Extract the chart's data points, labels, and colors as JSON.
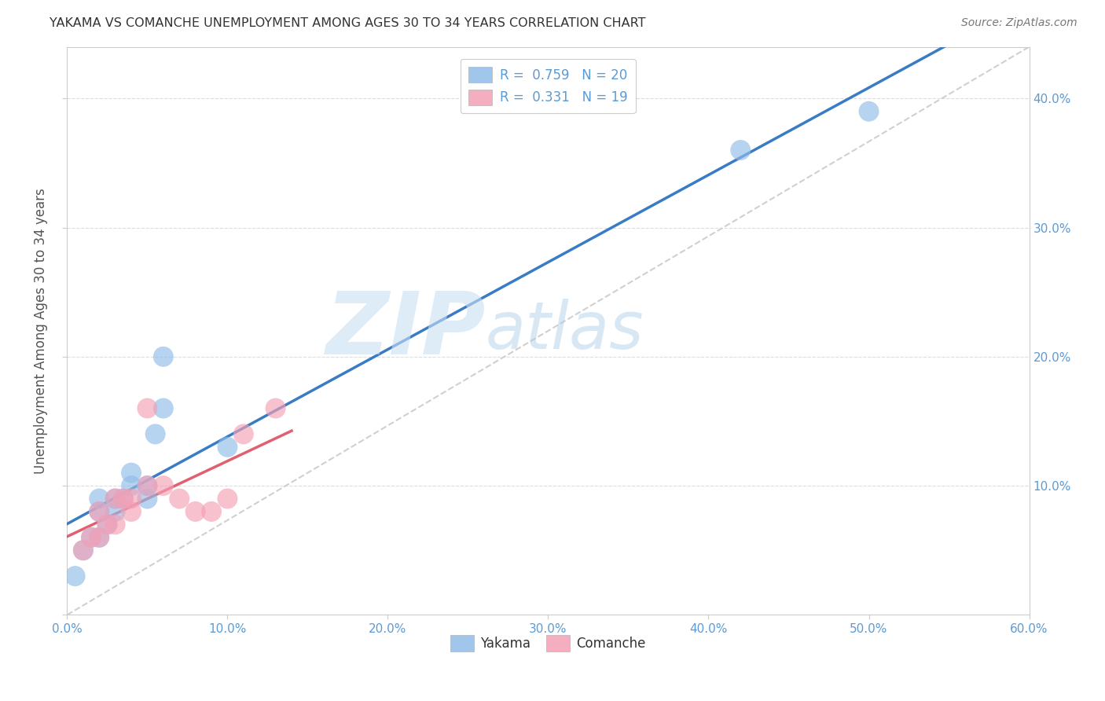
{
  "title": "YAKAMA VS COMANCHE UNEMPLOYMENT AMONG AGES 30 TO 34 YEARS CORRELATION CHART",
  "source_text": "Source: ZipAtlas.com",
  "ylabel": "Unemployment Among Ages 30 to 34 years",
  "watermark_zip": "ZIP",
  "watermark_atlas": "atlas",
  "xlim": [
    0.0,
    0.6
  ],
  "ylim": [
    0.0,
    0.44
  ],
  "yakama_color": "#90BCE8",
  "comanche_color": "#F4A0B5",
  "yakama_line_color": "#3A7CC4",
  "comanche_line_color": "#E06070",
  "ref_line_color": "#D0D0D0",
  "grid_color": "#DDDDDD",
  "tick_color": "#5B9BD5",
  "title_color": "#333333",
  "source_color": "#777777",
  "legend_label_color": "#5B9BD5",
  "bottom_legend_color": "#333333",
  "yakama_x": [
    0.005,
    0.01,
    0.015,
    0.02,
    0.02,
    0.02,
    0.025,
    0.03,
    0.03,
    0.035,
    0.04,
    0.04,
    0.05,
    0.05,
    0.055,
    0.06,
    0.06,
    0.1,
    0.42,
    0.5
  ],
  "yakama_y": [
    0.03,
    0.05,
    0.06,
    0.06,
    0.08,
    0.09,
    0.07,
    0.08,
    0.09,
    0.09,
    0.1,
    0.11,
    0.09,
    0.1,
    0.14,
    0.16,
    0.2,
    0.13,
    0.36,
    0.39
  ],
  "comanche_x": [
    0.01,
    0.015,
    0.02,
    0.02,
    0.025,
    0.03,
    0.03,
    0.035,
    0.04,
    0.04,
    0.05,
    0.05,
    0.06,
    0.07,
    0.08,
    0.09,
    0.1,
    0.11,
    0.13
  ],
  "comanche_y": [
    0.05,
    0.06,
    0.06,
    0.08,
    0.07,
    0.07,
    0.09,
    0.09,
    0.08,
    0.09,
    0.1,
    0.16,
    0.1,
    0.09,
    0.08,
    0.08,
    0.09,
    0.14,
    0.16
  ],
  "yakama_trend_x": [
    0.0,
    0.6
  ],
  "comanche_trend_x": [
    0.0,
    0.14
  ]
}
